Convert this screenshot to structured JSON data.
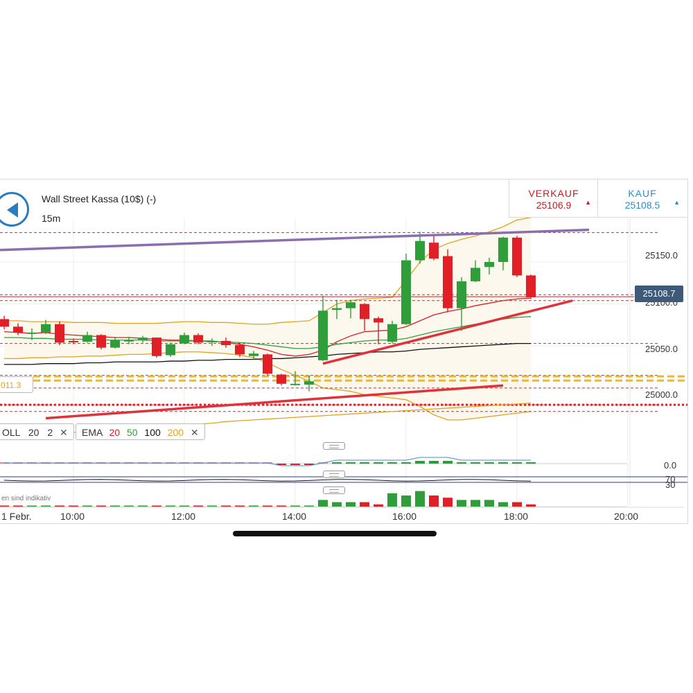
{
  "header": {
    "title": "Wall Street Kassa (10$) (-)",
    "timeframe": "15m"
  },
  "trade": {
    "sell_label": "VERKAUF",
    "sell_price": "25106.9",
    "buy_label": "KAUF",
    "buy_price": "25108.5"
  },
  "price_axis": [
    "25150.0",
    "25100.0",
    "25050.0",
    "25000.0"
  ],
  "current_price": "25108.7",
  "fib_label": "011.3",
  "indicators": {
    "boll": {
      "name": "OLL",
      "p1": "20",
      "p2": "2"
    },
    "ema": {
      "name": "EMA",
      "p1": "20",
      "p2": "50",
      "p3": "100",
      "p4": "200"
    }
  },
  "oscillators": {
    "macd_zero": "0.0",
    "rsi_upper": "70",
    "rsi_lower": "30"
  },
  "footer_note": "en sind indikativ",
  "time_axis": [
    "1 Febr.",
    "10:00",
    "12:00",
    "14:00",
    "16:00",
    "18:00",
    "20:00"
  ],
  "colors": {
    "up": "#2f9e3a",
    "down": "#e01f26",
    "ema20": "#d91f26",
    "ema50": "#2f9e3a",
    "ema100": "#111111",
    "ema200": "#e3a31a",
    "trendline": "#e0323a",
    "channel": "#8a6fae",
    "fib": "#e8b83a"
  },
  "chart_data": {
    "type": "candlestick",
    "symbol": "Wall Street Kassa (10$) (-)",
    "interval": "15m",
    "candles": [
      {
        "t": "09:00",
        "o": 25082,
        "h": 25086,
        "l": 25070,
        "c": 25073
      },
      {
        "t": "09:15",
        "o": 25073,
        "h": 25077,
        "l": 25063,
        "c": 25066
      },
      {
        "t": "09:30",
        "o": 25065,
        "h": 25071,
        "l": 25057,
        "c": 25066
      },
      {
        "t": "09:45",
        "o": 25066,
        "h": 25081,
        "l": 25064,
        "c": 25076
      },
      {
        "t": "10:00",
        "o": 25076,
        "h": 25079,
        "l": 25051,
        "c": 25054
      },
      {
        "t": "10:15",
        "o": 25056,
        "h": 25059,
        "l": 25052,
        "c": 25055
      },
      {
        "t": "10:30",
        "o": 25055,
        "h": 25067,
        "l": 25054,
        "c": 25063
      },
      {
        "t": "10:45",
        "o": 25063,
        "h": 25064,
        "l": 25046,
        "c": 25048
      },
      {
        "t": "11:00",
        "o": 25048,
        "h": 25061,
        "l": 25047,
        "c": 25057
      },
      {
        "t": "11:15",
        "o": 25057,
        "h": 25061,
        "l": 25052,
        "c": 25057
      },
      {
        "t": "11:30",
        "o": 25057,
        "h": 25062,
        "l": 25054,
        "c": 25060
      },
      {
        "t": "11:45",
        "o": 25060,
        "h": 25060,
        "l": 25036,
        "c": 25038
      },
      {
        "t": "12:00",
        "o": 25039,
        "h": 25054,
        "l": 25037,
        "c": 25052
      },
      {
        "t": "12:15",
        "o": 25053,
        "h": 25066,
        "l": 25052,
        "c": 25063
      },
      {
        "t": "12:30",
        "o": 25063,
        "h": 25065,
        "l": 25052,
        "c": 25054
      },
      {
        "t": "12:45",
        "o": 25056,
        "h": 25059,
        "l": 25050,
        "c": 25056
      },
      {
        "t": "13:00",
        "o": 25056,
        "h": 25060,
        "l": 25048,
        "c": 25051
      },
      {
        "t": "13:15",
        "o": 25051,
        "h": 25054,
        "l": 25037,
        "c": 25040
      },
      {
        "t": "13:30",
        "o": 25038,
        "h": 25044,
        "l": 25034,
        "c": 25041
      },
      {
        "t": "13:45",
        "o": 25040,
        "h": 25041,
        "l": 25015,
        "c": 25017
      },
      {
        "t": "14:00",
        "o": 25016,
        "h": 25017,
        "l": 25003,
        "c": 25005
      },
      {
        "t": "14:15",
        "o": 25005,
        "h": 25020,
        "l": 25003,
        "c": 25005
      },
      {
        "t": "14:30",
        "o": 25004,
        "h": 25015,
        "l": 24996,
        "c": 25008
      },
      {
        "t": "14:45",
        "o": 25033,
        "h": 25110,
        "l": 25032,
        "c": 25092
      },
      {
        "t": "15:00",
        "o": 25093,
        "h": 25105,
        "l": 25082,
        "c": 25095
      },
      {
        "t": "15:15",
        "o": 25095,
        "h": 25105,
        "l": 25083,
        "c": 25102
      },
      {
        "t": "15:30",
        "o": 25100,
        "h": 25101,
        "l": 25068,
        "c": 25082
      },
      {
        "t": "15:45",
        "o": 25083,
        "h": 25085,
        "l": 25052,
        "c": 25078
      },
      {
        "t": "16:00",
        "o": 25055,
        "h": 25080,
        "l": 25053,
        "c": 25076
      },
      {
        "t": "16:15",
        "o": 25076,
        "h": 25160,
        "l": 25075,
        "c": 25152
      },
      {
        "t": "16:30",
        "o": 25152,
        "h": 25186,
        "l": 25148,
        "c": 25175
      },
      {
        "t": "16:45",
        "o": 25173,
        "h": 25181,
        "l": 25152,
        "c": 25154
      },
      {
        "t": "17:00",
        "o": 25157,
        "h": 25165,
        "l": 25090,
        "c": 25095
      },
      {
        "t": "17:15",
        "o": 25095,
        "h": 25132,
        "l": 25068,
        "c": 25127
      },
      {
        "t": "17:30",
        "o": 25127,
        "h": 25152,
        "l": 25126,
        "c": 25143
      },
      {
        "t": "17:45",
        "o": 25144,
        "h": 25155,
        "l": 25135,
        "c": 25150
      },
      {
        "t": "18:00",
        "o": 25150,
        "h": 25180,
        "l": 25140,
        "c": 25179
      },
      {
        "t": "18:15",
        "o": 25179,
        "h": 25181,
        "l": 25132,
        "c": 25134
      },
      {
        "t": "18:30",
        "o": 25134,
        "h": 25135,
        "l": 25106,
        "c": 25108
      }
    ],
    "price_axis": {
      "ticks": [
        25150,
        25100,
        25050,
        25000
      ],
      "ymin": 24938,
      "ymax": 25202
    },
    "current_price": 25108.7,
    "horizontal_levels": [
      25185,
      25111,
      25104,
      25053,
      25015,
      25000,
      24980,
      24972
    ],
    "fib_level": 25011.3,
    "ema": [
      {
        "name": "20",
        "values": [
          25067,
          25066,
          25065,
          25066,
          25064,
          25063,
          25062,
          25061,
          25060,
          25060,
          25059,
          25058,
          25057,
          25057,
          25056,
          25056,
          25054,
          25052,
          25049,
          25045,
          25040,
          25038,
          25040,
          25045,
          25055,
          25062,
          25067,
          25068,
          25069,
          25073,
          25080,
          25087,
          25091,
          25094,
          25098,
          25101,
          25104,
          25106,
          25107
        ]
      },
      {
        "name": "50",
        "values": [
          25060,
          25060,
          25059,
          25059,
          25058,
          25058,
          25058,
          25057,
          25057,
          25057,
          25057,
          25056,
          25056,
          25056,
          25056,
          25055,
          25055,
          25054,
          25053,
          25051,
          25049,
          25047,
          25047,
          25049,
          25052,
          25054,
          25056,
          25057,
          25057,
          25059,
          25063,
          25067,
          25070,
          25073,
          25076,
          25079,
          25082,
          25084,
          25085
        ]
      },
      {
        "name": "100",
        "values": [
          25028,
          25028,
          25028,
          25029,
          25029,
          25029,
          25030,
          25030,
          25031,
          25031,
          25031,
          25031,
          25032,
          25032,
          25033,
          25033,
          25034,
          25034,
          25034,
          25035,
          25035,
          25036,
          25037,
          25038,
          25040,
          25041,
          25042,
          25043,
          25043,
          25044,
          25046,
          25047,
          25048,
          25049,
          25050,
          25051,
          25052,
          25053,
          25053
        ]
      },
      {
        "name": "200",
        "values": [
          24942,
          24943,
          24944,
          24945,
          24946,
          24947,
          24948,
          24949,
          24951,
          24952,
          24953,
          24954,
          24955,
          24956,
          24957,
          24958,
          24960,
          24961,
          24962,
          24963,
          24964,
          24965,
          24966,
          24967,
          24968,
          24969,
          24970,
          24971,
          24972,
          24973,
          24974,
          24975,
          24976,
          24977,
          24978,
          24979,
          24980,
          24981,
          24982
        ]
      }
    ],
    "bollinger": {
      "period": 20,
      "dev": 2,
      "upper": [
        25080,
        25080,
        25079,
        25079,
        25079,
        25078,
        25078,
        25078,
        25077,
        25077,
        25077,
        25077,
        25078,
        25079,
        25079,
        25078,
        25078,
        25077,
        25076,
        25076,
        25078,
        25079,
        25080,
        25090,
        25100,
        25104,
        25106,
        25107,
        25108,
        25128,
        25150,
        25165,
        25172,
        25177,
        25181,
        25186,
        25192,
        25200,
        25203
      ],
      "lower": [
        25035,
        25035,
        25036,
        25036,
        25037,
        25037,
        25038,
        25038,
        25039,
        25040,
        25040,
        25041,
        25042,
        25043,
        25043,
        25042,
        25041,
        25039,
        25036,
        25030,
        25022,
        25015,
        25008,
        25000,
        24998,
        24996,
        24992,
        24990,
        24988,
        24986,
        24978,
        24968,
        24962,
        24962,
        24964,
        24966,
        24968,
        24970,
        24972
      ]
    },
    "trendlines": [
      {
        "from": [
          "09:00",
          25161
        ],
        "to": [
          "19:30",
          25185
        ]
      },
      {
        "from": [
          "14:45",
          25029
        ],
        "to": [
          "19:15",
          25104
        ]
      },
      {
        "from": [
          "09:00",
          24964
        ],
        "to": [
          "18:00",
          25003
        ]
      }
    ],
    "macd_histogram": [
      0,
      0,
      0,
      0,
      0,
      0,
      0,
      0,
      0,
      0,
      0,
      0,
      0,
      0,
      0,
      0,
      0,
      0,
      0,
      0,
      -1,
      -1,
      -1,
      0,
      1,
      1,
      1,
      1,
      1,
      1,
      2,
      2,
      2,
      1,
      1,
      1,
      1,
      1,
      1
    ],
    "volume": [
      0,
      0,
      0,
      0,
      0,
      0,
      0,
      0,
      0,
      0,
      0,
      0,
      0,
      0,
      0,
      0,
      0,
      0,
      0,
      0,
      0,
      0,
      0,
      3,
      2,
      2,
      2,
      1,
      6,
      5,
      7,
      5,
      4,
      3,
      3,
      3,
      2,
      2,
      1
    ],
    "time_axis": [
      "1 Febr.",
      "10:00",
      "12:00",
      "14:00",
      "16:00",
      "18:00",
      "20:00"
    ]
  }
}
